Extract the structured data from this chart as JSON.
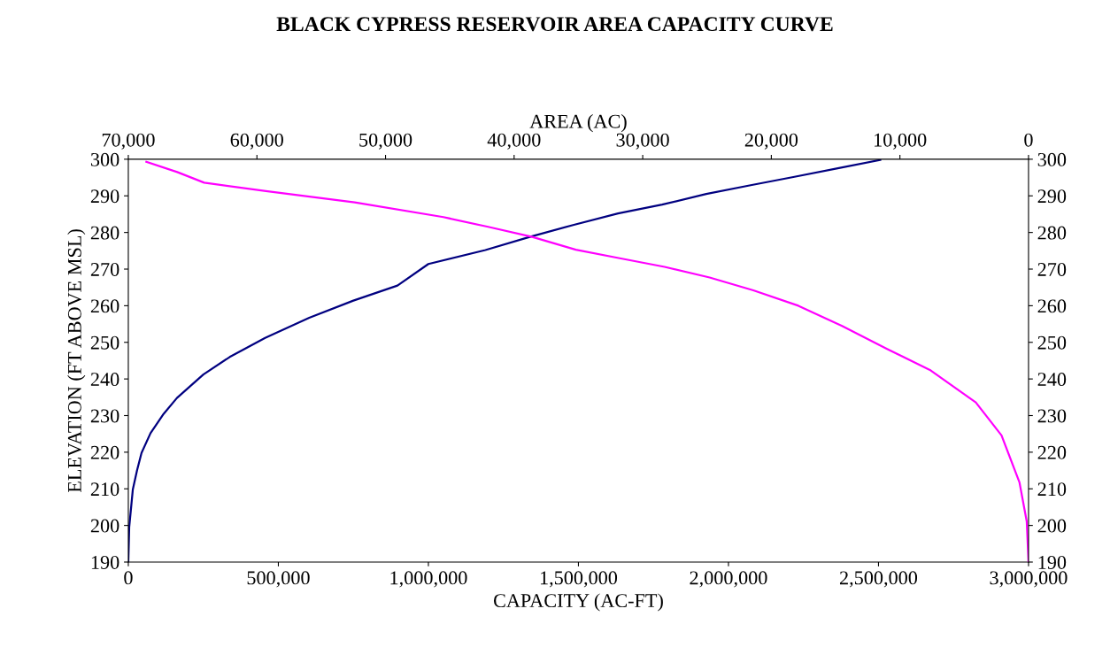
{
  "chart_data": {
    "type": "line",
    "title": "BLACK CYPRESS RESERVOIR AREA CAPACITY CURVE",
    "xlabel": "CAPACITY (AC-FT)",
    "ylabel": "ELEVATION (FT ABOVE MSL)",
    "x2label": "AREA (AC)",
    "xlim": [
      0,
      3000000
    ],
    "xticks": [
      0,
      {
        "value": 500000,
        "label": "500,000"
      },
      {
        "value": 1000000,
        "label": "1,000,000"
      },
      {
        "value": 1500000,
        "label": "1,500,000"
      },
      {
        "value": 2000000,
        "label": "2,000,000"
      },
      {
        "value": 2500000,
        "label": "2,500,000"
      },
      {
        "value": 3000000,
        "label": "3,000,000"
      }
    ],
    "ylim": [
      190,
      300
    ],
    "yticks": [
      190,
      200,
      210,
      220,
      230,
      240,
      250,
      260,
      270,
      280,
      290,
      300
    ],
    "x2lim": [
      70000,
      0
    ],
    "x2ticks": [
      {
        "value": 70000,
        "label": "70,000"
      },
      {
        "value": 60000,
        "label": "60,000"
      },
      {
        "value": 50000,
        "label": "50,000"
      },
      {
        "value": 40000,
        "label": "40,000"
      },
      {
        "value": 30000,
        "label": "30,000"
      },
      {
        "value": 20000,
        "label": "20,000"
      },
      {
        "value": 10000,
        "label": "10,000"
      },
      0
    ],
    "y2lim": [
      190,
      300
    ],
    "y2ticks": [
      190,
      200,
      210,
      220,
      230,
      240,
      250,
      260,
      270,
      280,
      290,
      300
    ],
    "grid": false,
    "legend": false,
    "marker": "none",
    "line_style": "solid",
    "series": [
      {
        "color": "#000080",
        "x": [
          0,
          3000,
          15000,
          29000,
          44000,
          74000,
          118000,
          162000,
          250000,
          338000,
          456000,
          603000,
          750000,
          897000,
          1000000,
          1190000,
          1338000,
          1485000,
          1632000,
          1779000,
          1926000,
          2074000,
          2220000,
          2368000,
          2506000
        ],
        "values": [
          190,
          199.5,
          209.8,
          215,
          219.8,
          225.2,
          230.5,
          234.8,
          241.2,
          246,
          251.2,
          256.7,
          261.4,
          265.5,
          271.4,
          275.2,
          278.8,
          282.1,
          285.2,
          287.6,
          290.5,
          292.9,
          295.2,
          297.6,
          299.8
        ]
      },
      {
        "color": "#ff00ff",
        "axis": "x2",
        "x": [
          68600,
          66200,
          64100,
          59300,
          52400,
          45500,
          42100,
          38600,
          35200,
          31700,
          28300,
          24800,
          21400,
          17900,
          14500,
          11000,
          7600,
          4100,
          2100,
          700,
          140,
          0
        ],
        "values": [
          299.3,
          296.5,
          293.6,
          291.3,
          288.2,
          284.2,
          281.6,
          278.8,
          275.3,
          272.9,
          270.6,
          267.7,
          264.2,
          260,
          254.5,
          248.2,
          242.3,
          233.6,
          224.6,
          211.7,
          201.1,
          190
        ]
      }
    ]
  }
}
